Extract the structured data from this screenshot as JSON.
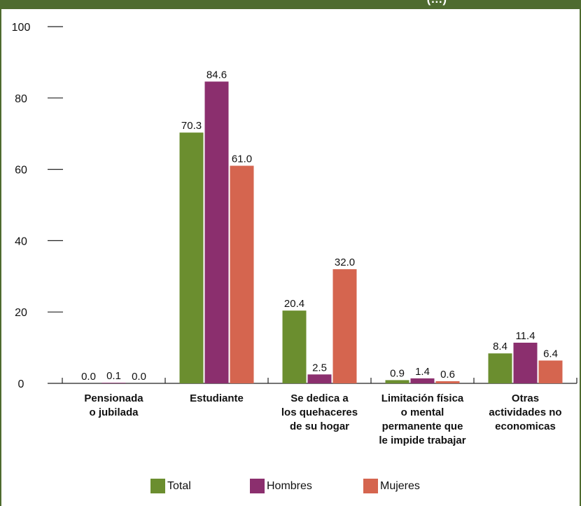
{
  "header": {
    "title_fragment": "(…)"
  },
  "chart_data": {
    "type": "bar",
    "categories": [
      [
        "Pensionada",
        "o jubilada"
      ],
      [
        "Estudiante"
      ],
      [
        "Se dedica a",
        "los quehaceres",
        "de su hogar"
      ],
      [
        "Limitación física",
        "o mental",
        "permanente que",
        "le impide trabajar"
      ],
      [
        "Otras",
        "actividades no",
        "economicas"
      ]
    ],
    "series": [
      {
        "name": "Total",
        "color": "#6b8e2f",
        "values": [
          0.0,
          70.3,
          20.4,
          0.9,
          8.4
        ],
        "labels": [
          "0.0",
          "70.3",
          "20.4",
          "0.9",
          "8.4"
        ]
      },
      {
        "name": "Hombres",
        "color": "#8b2f6e",
        "values": [
          0.1,
          84.6,
          2.5,
          1.4,
          11.4
        ],
        "labels": [
          "0.1",
          "84.6",
          "2.5",
          "1.4",
          "11.4"
        ]
      },
      {
        "name": "Mujeres",
        "color": "#d5654f",
        "values": [
          0.0,
          61.0,
          32.0,
          0.6,
          6.4
        ],
        "labels": [
          "0.0",
          "61.0",
          "32.0",
          "0.6",
          "6.4"
        ]
      }
    ],
    "yticks": [
      "0",
      "20",
      "40",
      "60",
      "80",
      "100"
    ],
    "ylim": [
      0,
      100
    ],
    "legend_position": "bottom"
  }
}
